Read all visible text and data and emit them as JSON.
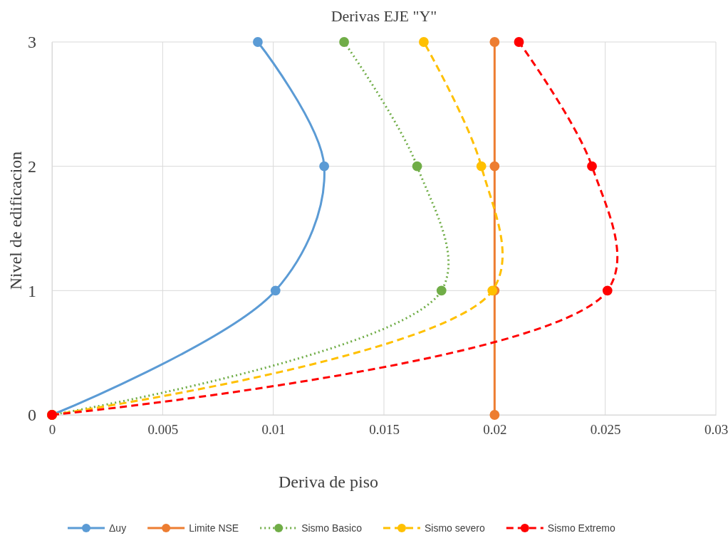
{
  "chart_data": {
    "type": "line",
    "title": "Derivas EJE \"Y\"",
    "xlabel": "Deriva de piso",
    "ylabel": "Nivel de edificacion",
    "xlim": [
      0,
      0.03
    ],
    "xticks": [
      0,
      0.005,
      0.01,
      0.015,
      0.02,
      0.025,
      0.03
    ],
    "ylim": [
      0,
      3
    ],
    "yticks": [
      0,
      1,
      2,
      3
    ],
    "grid": true,
    "legend": "bottom",
    "marker": "circle",
    "series": [
      {
        "name": "Δuy",
        "color": "#5b9bd5",
        "line_style": "solid",
        "x": [
          0,
          0.0101,
          0.0123,
          0.0093
        ],
        "values": [
          0,
          1,
          2,
          3
        ]
      },
      {
        "name": "Limite NSE",
        "color": "#ed7d31",
        "line_style": "solid",
        "x": [
          0.02,
          0.02,
          0.02,
          0.02
        ],
        "values": [
          0,
          1,
          2,
          3
        ]
      },
      {
        "name": "Sismo Basico",
        "color": "#70ad47",
        "line_style": "dotted",
        "x": [
          0,
          0.0176,
          0.0165,
          0.0132
        ],
        "values": [
          0,
          1,
          2,
          3
        ]
      },
      {
        "name": "Sismo severo",
        "color": "#ffc000",
        "line_style": "dashed",
        "x": [
          0,
          0.0199,
          0.0194,
          0.0168
        ],
        "values": [
          0,
          1,
          2,
          3
        ]
      },
      {
        "name": "Sismo Extremo",
        "color": "#ff0000",
        "line_style": "dashed",
        "x": [
          0,
          0.0251,
          0.0244,
          0.0211
        ],
        "values": [
          0,
          1,
          2,
          3
        ]
      }
    ]
  }
}
